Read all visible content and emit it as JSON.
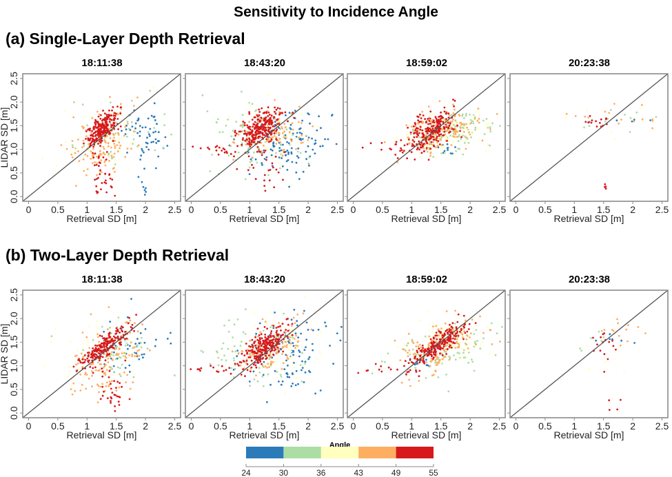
{
  "title": "Sensitivity to Incidence Angle",
  "sections": [
    {
      "label": "(a) Single-Layer Depth Retrieval"
    },
    {
      "label": "(b) Two-Layer Depth Retrieval"
    }
  ],
  "legend": {
    "title": "Angle",
    "breaks": [
      "24",
      "30",
      "36",
      "43",
      "49",
      "55"
    ],
    "colors": [
      "#2b7bba",
      "#abdda4",
      "#ffffbf",
      "#fdae61",
      "#d7191c"
    ]
  },
  "chart_data": [
    {
      "type": "scatter",
      "row": "a",
      "title": "18:11:38",
      "xlabel": "Retrieval SD [m]",
      "ylabel": "LIDAR SD [m]",
      "xlim": [
        -0.1,
        2.6
      ],
      "ylim": [
        -0.1,
        2.6
      ],
      "xticks": [
        "0",
        "0.5",
        "1",
        "1.5",
        "2",
        "2.5"
      ],
      "yticks": [
        "0.0",
        "0.5",
        "1.0",
        "1.5",
        "2.0",
        "2.5"
      ],
      "reference_line": "1:1",
      "clusters": [
        {
          "angle_class": 4,
          "cx": 1.25,
          "cy": 1.45,
          "sx": 0.13,
          "sy": 0.17,
          "n": 230,
          "rho": 0.6
        },
        {
          "angle_class": 4,
          "cx": 1.25,
          "cy": 0.45,
          "sx": 0.12,
          "sy": 0.35,
          "n": 40,
          "rho": 0
        },
        {
          "angle_class": 3,
          "cx": 1.3,
          "cy": 1.15,
          "sx": 0.28,
          "sy": 0.35,
          "n": 140,
          "rho": 0.2
        },
        {
          "angle_class": 2,
          "cx": 1.2,
          "cy": 1.3,
          "sx": 0.35,
          "sy": 0.35,
          "n": 50,
          "rho": 0.2
        },
        {
          "angle_class": 1,
          "cx": 1.4,
          "cy": 1.3,
          "sx": 0.4,
          "sy": 0.35,
          "n": 50,
          "rho": 0
        },
        {
          "angle_class": 0,
          "cx": 2.0,
          "cy": 1.35,
          "sx": 0.18,
          "sy": 0.3,
          "n": 55,
          "rho": 0
        },
        {
          "angle_class": 0,
          "cx": 1.95,
          "cy": 0.25,
          "sx": 0.05,
          "sy": 0.15,
          "n": 8,
          "rho": 0
        }
      ]
    },
    {
      "type": "scatter",
      "row": "a",
      "title": "18:43:20",
      "xlabel": "Retrieval SD [m]",
      "ylabel": "",
      "xlim": [
        -0.1,
        2.6
      ],
      "ylim": [
        -0.1,
        2.6
      ],
      "xticks": [
        "0",
        "0.5",
        "1",
        "1.5",
        "2",
        "2.5"
      ],
      "reference_line": "1:1",
      "clusters": [
        {
          "angle_class": 4,
          "cx": 1.2,
          "cy": 1.45,
          "sx": 0.17,
          "sy": 0.2,
          "n": 260,
          "rho": 0.5
        },
        {
          "angle_class": 4,
          "cx": 0.5,
          "cy": 0.97,
          "sx": 0.2,
          "sy": 0.05,
          "n": 18,
          "rho": 0
        },
        {
          "angle_class": 4,
          "cx": 1.3,
          "cy": 0.6,
          "sx": 0.15,
          "sy": 0.3,
          "n": 25,
          "rho": 0
        },
        {
          "angle_class": 3,
          "cx": 1.35,
          "cy": 1.35,
          "sx": 0.3,
          "sy": 0.25,
          "n": 110,
          "rho": 0.3
        },
        {
          "angle_class": 2,
          "cx": 1.4,
          "cy": 1.2,
          "sx": 0.4,
          "sy": 0.4,
          "n": 50,
          "rho": 0
        },
        {
          "angle_class": 1,
          "cx": 1.05,
          "cy": 1.3,
          "sx": 0.35,
          "sy": 0.35,
          "n": 80,
          "rho": 0
        },
        {
          "angle_class": 0,
          "cx": 1.7,
          "cy": 1.15,
          "sx": 0.35,
          "sy": 0.35,
          "n": 120,
          "rho": 0.2
        }
      ]
    },
    {
      "type": "scatter",
      "row": "a",
      "title": "18:59:02",
      "xlabel": "Retrieval SD [m]",
      "ylabel": "",
      "xlim": [
        -0.1,
        2.6
      ],
      "ylim": [
        -0.1,
        2.6
      ],
      "xticks": [
        "0",
        "0.5",
        "1",
        "1.5",
        "2",
        "2.5"
      ],
      "reference_line": "1:1",
      "clusters": [
        {
          "angle_class": 4,
          "cx": 1.35,
          "cy": 1.4,
          "sx": 0.22,
          "sy": 0.22,
          "n": 230,
          "rho": 0.5
        },
        {
          "angle_class": 4,
          "cx": 0.6,
          "cy": 1.0,
          "sx": 0.25,
          "sy": 0.06,
          "n": 15,
          "rho": 0
        },
        {
          "angle_class": 3,
          "cx": 1.5,
          "cy": 1.4,
          "sx": 0.35,
          "sy": 0.25,
          "n": 160,
          "rho": 0.4
        },
        {
          "angle_class": 2,
          "cx": 1.55,
          "cy": 1.35,
          "sx": 0.4,
          "sy": 0.25,
          "n": 90,
          "rho": 0.3
        },
        {
          "angle_class": 1,
          "cx": 1.7,
          "cy": 1.35,
          "sx": 0.35,
          "sy": 0.2,
          "n": 110,
          "rho": 0.3
        },
        {
          "angle_class": 0,
          "cx": 1.55,
          "cy": 1.0,
          "sx": 0.08,
          "sy": 0.08,
          "n": 12,
          "rho": 0
        }
      ]
    },
    {
      "type": "scatter",
      "row": "a",
      "title": "20:23:38",
      "xlabel": "Retrieval SD [m]",
      "ylabel": "",
      "xlim": [
        -0.1,
        2.6
      ],
      "ylim": [
        -0.1,
        2.6
      ],
      "xticks": [
        "0",
        "0.5",
        "1",
        "1.5",
        "2",
        "2.5"
      ],
      "reference_line": "1:1",
      "clusters": [
        {
          "angle_class": 4,
          "cx": 1.4,
          "cy": 1.6,
          "sx": 0.12,
          "sy": 0.08,
          "n": 14,
          "rho": 0
        },
        {
          "angle_class": 4,
          "cx": 1.55,
          "cy": 0.1,
          "sx": 0.05,
          "sy": 0.15,
          "n": 5,
          "rho": 0
        },
        {
          "angle_class": 3,
          "cx": 1.8,
          "cy": 1.7,
          "sx": 0.45,
          "sy": 0.2,
          "n": 16,
          "rho": 0
        },
        {
          "angle_class": 2,
          "cx": 1.7,
          "cy": 1.55,
          "sx": 0.4,
          "sy": 0.25,
          "n": 8,
          "rho": 0
        },
        {
          "angle_class": 1,
          "cx": 1.6,
          "cy": 1.65,
          "sx": 0.35,
          "sy": 0.15,
          "n": 10,
          "rho": 0
        },
        {
          "angle_class": 0,
          "cx": 1.8,
          "cy": 1.62,
          "sx": 0.3,
          "sy": 0.1,
          "n": 5,
          "rho": 0
        }
      ]
    },
    {
      "type": "scatter",
      "row": "b",
      "title": "18:11:38",
      "xlabel": "Retrieval SD [m]",
      "ylabel": "LIDAR SD [m]",
      "xlim": [
        -0.1,
        2.6
      ],
      "ylim": [
        -0.1,
        2.6
      ],
      "xticks": [
        "0",
        "0.5",
        "1",
        "1.5",
        "2",
        "2.5"
      ],
      "yticks": [
        "0.0",
        "0.5",
        "1.0",
        "1.5",
        "2.0",
        "2.5"
      ],
      "reference_line": "1:1",
      "clusters": [
        {
          "angle_class": 4,
          "cx": 1.3,
          "cy": 1.4,
          "sx": 0.2,
          "sy": 0.2,
          "n": 220,
          "rho": 0.85
        },
        {
          "angle_class": 4,
          "cx": 1.4,
          "cy": 0.4,
          "sx": 0.12,
          "sy": 0.3,
          "n": 35,
          "rho": 0
        },
        {
          "angle_class": 3,
          "cx": 1.3,
          "cy": 1.15,
          "sx": 0.3,
          "sy": 0.4,
          "n": 140,
          "rho": 0.4
        },
        {
          "angle_class": 2,
          "cx": 1.2,
          "cy": 1.25,
          "sx": 0.4,
          "sy": 0.35,
          "n": 40,
          "rho": 0.2
        },
        {
          "angle_class": 1,
          "cx": 1.5,
          "cy": 1.35,
          "sx": 0.35,
          "sy": 0.3,
          "n": 50,
          "rho": 0
        },
        {
          "angle_class": 0,
          "cx": 1.75,
          "cy": 1.35,
          "sx": 0.25,
          "sy": 0.3,
          "n": 45,
          "rho": 0
        }
      ]
    },
    {
      "type": "scatter",
      "row": "b",
      "title": "18:43:20",
      "xlabel": "Retrieval SD [m]",
      "ylabel": "",
      "xlim": [
        -0.1,
        2.6
      ],
      "ylim": [
        -0.1,
        2.6
      ],
      "xticks": [
        "0",
        "0.5",
        "1",
        "1.5",
        "2",
        "2.5"
      ],
      "reference_line": "1:1",
      "clusters": [
        {
          "angle_class": 4,
          "cx": 1.25,
          "cy": 1.4,
          "sx": 0.2,
          "sy": 0.22,
          "n": 250,
          "rho": 0.75
        },
        {
          "angle_class": 4,
          "cx": 0.4,
          "cy": 0.95,
          "sx": 0.2,
          "sy": 0.05,
          "n": 15,
          "rho": 0
        },
        {
          "angle_class": 3,
          "cx": 1.35,
          "cy": 1.4,
          "sx": 0.3,
          "sy": 0.25,
          "n": 110,
          "rho": 0.5
        },
        {
          "angle_class": 2,
          "cx": 1.4,
          "cy": 1.3,
          "sx": 0.45,
          "sy": 0.35,
          "n": 50,
          "rho": 0
        },
        {
          "angle_class": 1,
          "cx": 1.0,
          "cy": 1.25,
          "sx": 0.4,
          "sy": 0.4,
          "n": 80,
          "rho": 0
        },
        {
          "angle_class": 0,
          "cx": 1.6,
          "cy": 1.2,
          "sx": 0.35,
          "sy": 0.4,
          "n": 110,
          "rho": 0.1
        }
      ]
    },
    {
      "type": "scatter",
      "row": "b",
      "title": "18:59:02",
      "xlabel": "Retrieval SD [m]",
      "ylabel": "",
      "xlim": [
        -0.1,
        2.6
      ],
      "ylim": [
        -0.1,
        2.6
      ],
      "xticks": [
        "0",
        "0.5",
        "1",
        "1.5",
        "2",
        "2.5"
      ],
      "reference_line": "1:1",
      "clusters": [
        {
          "angle_class": 4,
          "cx": 1.45,
          "cy": 1.45,
          "sx": 0.22,
          "sy": 0.22,
          "n": 240,
          "rho": 0.85
        },
        {
          "angle_class": 4,
          "cx": 0.5,
          "cy": 0.95,
          "sx": 0.25,
          "sy": 0.06,
          "n": 12,
          "rho": 0
        },
        {
          "angle_class": 3,
          "cx": 1.45,
          "cy": 1.4,
          "sx": 0.35,
          "sy": 0.3,
          "n": 150,
          "rho": 0.5
        },
        {
          "angle_class": 2,
          "cx": 1.5,
          "cy": 1.45,
          "sx": 0.35,
          "sy": 0.25,
          "n": 80,
          "rho": 0.4
        },
        {
          "angle_class": 1,
          "cx": 1.55,
          "cy": 1.3,
          "sx": 0.4,
          "sy": 0.25,
          "n": 90,
          "rho": 0.3
        },
        {
          "angle_class": 0,
          "cx": 1.2,
          "cy": 1.0,
          "sx": 0.15,
          "sy": 0.08,
          "n": 10,
          "rho": 0
        }
      ]
    },
    {
      "type": "scatter",
      "row": "b",
      "title": "20:23:38",
      "xlabel": "Retrieval SD [m]",
      "ylabel": "",
      "xlim": [
        -0.1,
        2.6
      ],
      "ylim": [
        -0.1,
        2.6
      ],
      "xticks": [
        "0",
        "0.5",
        "1",
        "1.5",
        "2",
        "2.5"
      ],
      "reference_line": "1:1",
      "clusters": [
        {
          "angle_class": 4,
          "cx": 1.55,
          "cy": 1.45,
          "sx": 0.15,
          "sy": 0.18,
          "n": 16,
          "rho": 0
        },
        {
          "angle_class": 4,
          "cx": 1.65,
          "cy": 0.15,
          "sx": 0.1,
          "sy": 0.12,
          "n": 4,
          "rho": 0
        },
        {
          "angle_class": 3,
          "cx": 1.7,
          "cy": 1.7,
          "sx": 0.25,
          "sy": 0.2,
          "n": 12,
          "rho": 0
        },
        {
          "angle_class": 2,
          "cx": 1.6,
          "cy": 1.45,
          "sx": 0.35,
          "sy": 0.3,
          "n": 8,
          "rho": 0
        },
        {
          "angle_class": 1,
          "cx": 1.4,
          "cy": 1.6,
          "sx": 0.35,
          "sy": 0.15,
          "n": 8,
          "rho": 0
        },
        {
          "angle_class": 0,
          "cx": 1.7,
          "cy": 1.6,
          "sx": 0.25,
          "sy": 0.1,
          "n": 6,
          "rho": 0
        }
      ]
    }
  ]
}
